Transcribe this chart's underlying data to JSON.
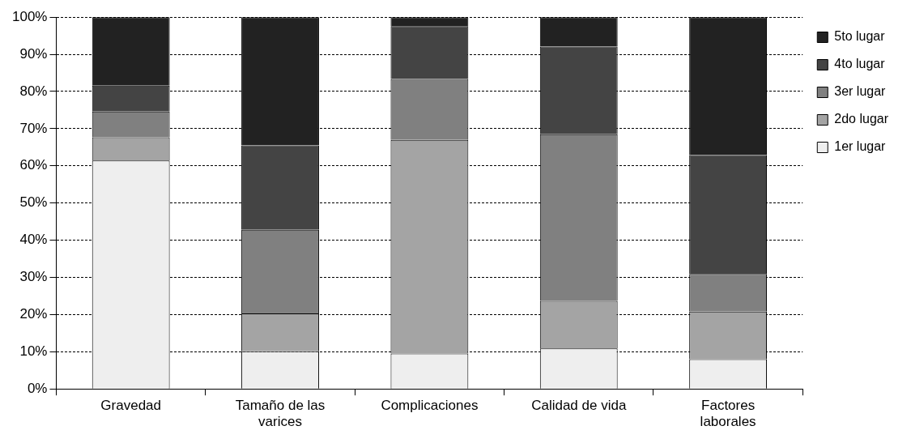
{
  "chart_data": {
    "type": "bar",
    "stacked": true,
    "categories": [
      "Gravedad",
      "Tamaño de las varices",
      "Complicaciones",
      "Calidad de vida",
      "Factores laborales"
    ],
    "series": [
      {
        "name": "1er lugar",
        "color": "#eeeeee",
        "values": [
          61.4,
          10.1,
          9.5,
          10.9,
          8.0
        ]
      },
      {
        "name": "2do lugar",
        "color": "#a4a4a4",
        "values": [
          6.3,
          10.2,
          57.5,
          12.8,
          12.8
        ]
      },
      {
        "name": "3er lugar",
        "color": "#808080",
        "values": [
          6.9,
          22.5,
          16.4,
          44.8,
          10.1
        ]
      },
      {
        "name": "4to lugar",
        "color": "#444444",
        "values": [
          7.0,
          22.7,
          14.2,
          23.6,
          32.0
        ]
      },
      {
        "name": "5to lugar",
        "color": "#222222",
        "values": [
          18.4,
          34.5,
          2.4,
          7.9,
          37.1
        ]
      }
    ],
    "ylim": [
      0,
      100
    ],
    "yticks": [
      {
        "value": 0,
        "label": "0%"
      },
      {
        "value": 10,
        "label": "10%"
      },
      {
        "value": 20,
        "label": "20%"
      },
      {
        "value": 30,
        "label": "30%"
      },
      {
        "value": 40,
        "label": "40%"
      },
      {
        "value": 50,
        "label": "50%"
      },
      {
        "value": 60,
        "label": "60%"
      },
      {
        "value": 70,
        "label": "70%"
      },
      {
        "value": 80,
        "label": "80%"
      },
      {
        "value": 90,
        "label": "90%"
      },
      {
        "value": 100,
        "label": "100%"
      }
    ],
    "grid": "y",
    "legend": "right"
  }
}
